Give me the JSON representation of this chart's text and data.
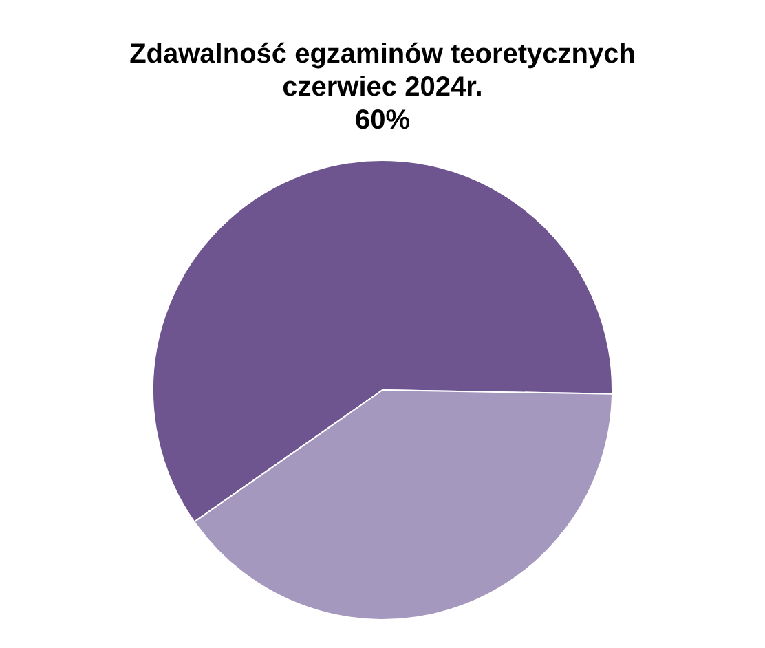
{
  "chart_data": {
    "type": "pie",
    "title": "Zdawalność egzaminów teoretycznych\nczerwiec 2024r.\n60%",
    "categories": [
      null,
      null
    ],
    "values": [
      60,
      40
    ],
    "colors": [
      "#6f5590",
      "#a598bf"
    ],
    "legend": false
  }
}
